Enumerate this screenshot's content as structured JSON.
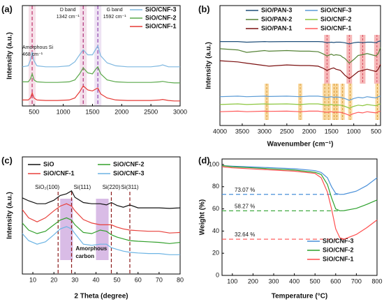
{
  "chart_data": [
    {
      "type": "line",
      "label": "(a)",
      "y_label": "Intensity (a.u.)",
      "x": [
        300,
        400,
        440,
        468,
        500,
        550,
        700,
        900,
        1100,
        1200,
        1280,
        1342,
        1420,
        1500,
        1560,
        1592,
        1640,
        1750,
        1900,
        2100,
        2300,
        2500,
        2650,
        2700,
        2800,
        2900,
        3000
      ],
      "xlim": [
        300,
        3000
      ],
      "xticks": [
        500,
        1000,
        1500,
        2000,
        2500,
        3000
      ],
      "ylim": [
        0,
        10
      ],
      "series": [
        {
          "name": "SiO/CNF-3",
          "color": "#7fb8e0",
          "values": [
            3.9,
            4.0,
            4.6,
            5.4,
            4.5,
            4.0,
            3.9,
            3.9,
            4.0,
            4.4,
            5.1,
            5.6,
            5.1,
            5.1,
            5.7,
            6.0,
            5.0,
            4.3,
            4.0,
            3.9,
            3.9,
            3.9,
            4.0,
            4.1,
            3.9,
            3.9,
            3.9
          ]
        },
        {
          "name": "SiO/CNF-2",
          "color": "#5aa84a",
          "values": [
            2.4,
            2.4,
            2.7,
            3.2,
            2.6,
            2.4,
            2.35,
            2.35,
            2.4,
            2.6,
            3.2,
            3.8,
            3.3,
            3.2,
            3.7,
            3.9,
            3.2,
            2.6,
            2.4,
            2.35,
            2.35,
            2.35,
            2.4,
            2.45,
            2.35,
            2.3,
            2.3
          ]
        },
        {
          "name": "SiO/CNF-1",
          "color": "#e53935",
          "values": [
            0.6,
            0.6,
            0.8,
            1.3,
            0.8,
            0.6,
            0.55,
            0.55,
            0.6,
            0.8,
            1.4,
            2.0,
            1.6,
            1.5,
            1.7,
            1.8,
            1.2,
            0.8,
            0.6,
            0.55,
            0.55,
            0.55,
            0.6,
            0.65,
            0.55,
            0.5,
            0.5
          ]
        }
      ],
      "vlines": [
        468,
        1342,
        1592
      ],
      "vline_colors": [
        "#c0306a",
        "#b0307a",
        "#8e44ad"
      ],
      "annotations": [
        [
          "Amorphous Si",
          "468 cm⁻¹"
        ],
        [
          "D band",
          "1342 cm⁻¹"
        ],
        [
          "G band",
          "1592 cm⁻¹"
        ]
      ]
    },
    {
      "type": "line",
      "label": "(b)",
      "y_label": "Intensity (a.u.)",
      "x_label": "Wavenumber (cm⁻¹)",
      "x": [
        4000,
        3600,
        3400,
        3000,
        2900,
        2500,
        2200,
        2000,
        1800,
        1700,
        1600,
        1500,
        1450,
        1400,
        1300,
        1250,
        1200,
        1100,
        1000,
        900,
        800,
        700,
        600,
        500,
        450,
        400
      ],
      "xlim": [
        4000,
        400
      ],
      "xticks": [
        4000,
        3500,
        3000,
        2500,
        2000,
        1500,
        1000,
        500
      ],
      "ylim": [
        0,
        10
      ],
      "series": [
        {
          "name": "SiO/PAN-3",
          "color": "#1f4e79",
          "values": [
            7.0,
            7.0,
            6.95,
            7.0,
            6.98,
            7.0,
            7.0,
            7.0,
            7.0,
            6.98,
            6.9,
            6.95,
            6.92,
            6.95,
            6.95,
            6.93,
            6.9,
            6.8,
            6.9,
            6.95,
            6.9,
            6.95,
            6.95,
            6.9,
            7.0,
            7.05
          ]
        },
        {
          "name": "SiO/CNF-3",
          "color": "#5b9bd5",
          "values": [
            2.4,
            2.45,
            2.4,
            2.45,
            2.42,
            2.45,
            2.4,
            2.45,
            2.45,
            2.4,
            2.35,
            2.4,
            2.35,
            2.38,
            2.35,
            2.3,
            2.25,
            2.1,
            2.25,
            2.35,
            2.3,
            2.4,
            2.35,
            2.3,
            2.4,
            2.45
          ]
        },
        {
          "name": "SiO/PAN-2",
          "color": "#548235",
          "values": [
            6.4,
            6.3,
            6.1,
            6.25,
            6.2,
            6.25,
            6.2,
            6.2,
            6.15,
            6.0,
            5.8,
            5.95,
            5.85,
            5.9,
            5.85,
            5.7,
            5.6,
            5.2,
            5.5,
            5.85,
            5.9,
            6.0,
            5.9,
            5.8,
            6.0,
            6.5
          ]
        },
        {
          "name": "SiO/CNF-2",
          "color": "#8cc63f",
          "values": [
            1.75,
            1.8,
            1.75,
            1.8,
            1.78,
            1.8,
            1.75,
            1.8,
            1.8,
            1.75,
            1.7,
            1.75,
            1.7,
            1.72,
            1.7,
            1.65,
            1.6,
            1.45,
            1.6,
            1.7,
            1.65,
            1.75,
            1.7,
            1.65,
            1.75,
            1.8
          ]
        },
        {
          "name": "SiO/PAN-1",
          "color": "#7b1010",
          "values": [
            5.4,
            5.3,
            5.2,
            5.0,
            4.95,
            5.05,
            5.0,
            5.0,
            4.95,
            4.8,
            4.6,
            4.75,
            4.8,
            4.7,
            4.6,
            4.4,
            4.2,
            3.9,
            4.2,
            4.5,
            4.6,
            4.7,
            4.6,
            4.5,
            4.7,
            5.1
          ]
        },
        {
          "name": "SiO/CNF-1",
          "color": "#ff5a5a",
          "values": [
            1.15,
            1.2,
            1.15,
            1.2,
            1.18,
            1.2,
            1.15,
            1.2,
            1.2,
            1.15,
            1.1,
            1.15,
            1.1,
            1.12,
            1.1,
            1.05,
            1.0,
            0.85,
            1.0,
            1.1,
            1.05,
            1.15,
            1.1,
            1.05,
            1.15,
            1.2
          ]
        }
      ],
      "highlights_upper": [
        1600,
        1100,
        800,
        480
      ],
      "highlights_lower": [
        2950,
        2200,
        1650,
        1560,
        1440,
        1380,
        1250,
        1080,
        470
      ],
      "highlight_colors": [
        "#f4a7a7",
        "#f7d08a"
      ]
    },
    {
      "type": "line",
      "label": "(c)",
      "y_label": "Intensity (a.u.)",
      "x_label": "2 Theta (degree)",
      "x": [
        5,
        8,
        12,
        16,
        20,
        23,
        26,
        28.4,
        30,
        34,
        38,
        42,
        45,
        47.3,
        50,
        53,
        56.1,
        60,
        65,
        70,
        75,
        80
      ],
      "xlim": [
        5,
        80
      ],
      "xticks": [
        10,
        20,
        30,
        40,
        50,
        60,
        70,
        80
      ],
      "ylim": [
        0,
        10
      ],
      "series": [
        {
          "name": "SiO",
          "color": "#111111",
          "values": [
            6.5,
            6.25,
            6.0,
            6.0,
            6.3,
            6.7,
            6.85,
            7.1,
            6.55,
            6.1,
            6.0,
            6.0,
            5.9,
            6.1,
            5.85,
            5.7,
            5.9,
            5.65,
            5.65,
            5.65,
            5.6,
            5.65
          ]
        },
        {
          "name": "SiO/CNF-2",
          "color": "#33a02c",
          "values": [
            4.35,
            3.75,
            3.45,
            3.65,
            4.2,
            4.6,
            4.8,
            4.6,
            4.2,
            3.55,
            3.45,
            3.75,
            3.65,
            3.35,
            3.15,
            3.0,
            2.85,
            2.8,
            2.75,
            2.7,
            2.6,
            2.7
          ]
        },
        {
          "name": "SiO/CNF-1",
          "color": "#e8413c",
          "values": [
            5.5,
            4.8,
            4.45,
            4.8,
            5.4,
            5.8,
            6.0,
            5.8,
            5.4,
            4.65,
            4.35,
            4.2,
            4.2,
            4.2,
            4.0,
            3.85,
            3.75,
            3.7,
            3.65,
            3.65,
            3.5,
            3.55
          ]
        },
        {
          "name": "SiO/CNF-3",
          "color": "#6cb4e4",
          "values": [
            3.45,
            2.85,
            2.55,
            2.75,
            3.35,
            3.85,
            4.05,
            3.85,
            3.45,
            2.55,
            2.45,
            2.55,
            2.55,
            2.25,
            2.1,
            1.95,
            1.85,
            1.8,
            1.75,
            1.75,
            1.65,
            1.65
          ]
        }
      ],
      "vlines": [
        22,
        28.4,
        47.3,
        56.1
      ],
      "vline_color": "#8b1a1a",
      "annotations": [
        "SiO₂(100)",
        "Si(111)",
        "Si(220)",
        "Si(311)"
      ],
      "bands": [
        [
          23,
          29
        ],
        [
          40,
          46
        ]
      ],
      "band_color": "#c9a0dc",
      "note": [
        "Amorphous",
        "carbon"
      ]
    },
    {
      "type": "line",
      "label": "(d)",
      "y_label": "Weight (%)",
      "x_label": "Temperature (°C)",
      "x": [
        50,
        100,
        200,
        300,
        400,
        500,
        530,
        560,
        580,
        600,
        620,
        640,
        700,
        750,
        800
      ],
      "xlim": [
        50,
        800
      ],
      "xticks": [
        100,
        200,
        300,
        400,
        500,
        600,
        700,
        800
      ],
      "ylim": [
        0,
        105
      ],
      "yticks": [
        0,
        20,
        40,
        60,
        80,
        100
      ],
      "series": [
        {
          "name": "SiO/CNF-3",
          "color": "#4a90d9",
          "values": [
            99,
            98.5,
            97.8,
            97,
            96.2,
            94.5,
            92.8,
            88,
            80,
            74,
            73.07,
            73.2,
            76,
            81,
            88
          ]
        },
        {
          "name": "SiO/CNF-2",
          "color": "#2ca02c",
          "values": [
            99,
            98,
            97,
            96,
            95,
            93,
            91,
            82,
            70,
            60,
            58.27,
            58.4,
            60.5,
            64,
            68
          ]
        },
        {
          "name": "SiO/CNF-1",
          "color": "#ff4d4d",
          "values": [
            98,
            97,
            96,
            95,
            94,
            92,
            88,
            75,
            60,
            42,
            34,
            32.64,
            37,
            43,
            50
          ]
        }
      ],
      "reference_lines": {
        "values": [
          73.07,
          58.27,
          32.64
        ],
        "value_labels": [
          "73.07 %",
          "58.27 %",
          "32.64 %"
        ]
      }
    }
  ]
}
